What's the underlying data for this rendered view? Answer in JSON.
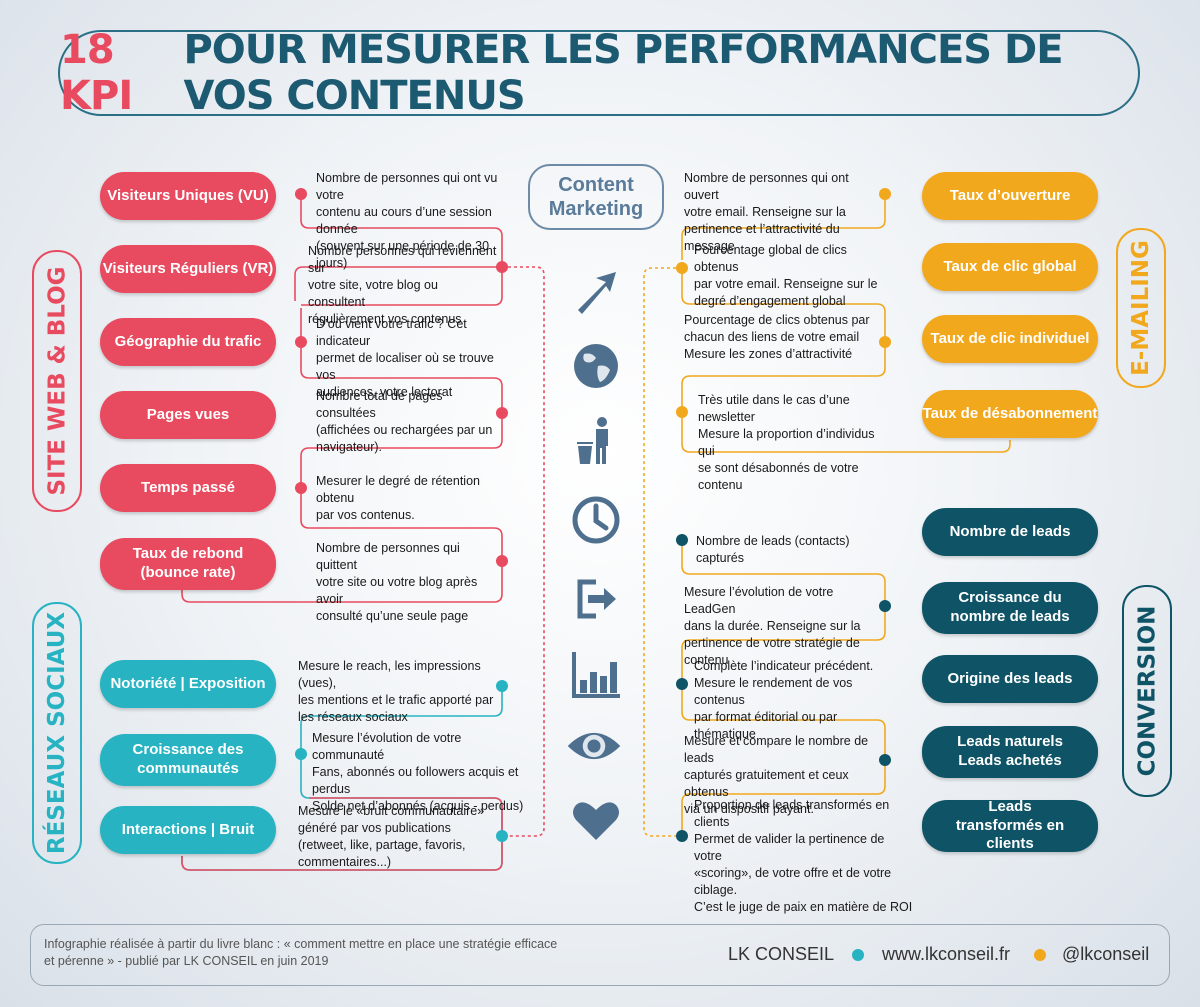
{
  "title": {
    "kpi": "18 KPI",
    "rest": "POUR MESURER LES PERFORMANCES DE VOS CONTENUS"
  },
  "center": {
    "line1": "Content",
    "line2": "Marketing"
  },
  "categories": {
    "web": "SITE WEB & BLOG",
    "social": "RÉSEAUX SOCIAUX",
    "email": "E-MAILING",
    "conversion": "CONVERSION"
  },
  "colors": {
    "pink": "#e84a5f",
    "teal": "#27b3c2",
    "orange": "#f2a81d",
    "navy": "#0f5466",
    "title": "#1c5a72"
  },
  "icons": [
    "arrow-icon",
    "globe-icon",
    "trash-person-icon",
    "clock-icon",
    "exit-icon",
    "bar-chart-icon",
    "eye-icon",
    "heart-icon"
  ],
  "web": [
    {
      "label": "Visiteurs Uniques (VU)",
      "desc": [
        "Nombre de personnes qui ont vu votre",
        "contenu au cours d’une session donnée",
        "(souvent sur une période de 30 jours)"
      ]
    },
    {
      "label": "Visiteurs Réguliers (VR)",
      "desc": [
        "Nombre personnes qui reviennent sur",
        "votre site, votre blog ou consultent",
        "régulièrement vos contenus"
      ]
    },
    {
      "label": "Géographie du trafic",
      "desc": [
        "D’où vient votre trafic ? Cet indicateur",
        "permet de localiser où se trouve vos",
        "audiences, votre lectorat"
      ]
    },
    {
      "label": "Pages vues",
      "desc": [
        "Nombre total de pages consultées",
        "(affichées ou rechargées par un",
        "navigateur)."
      ]
    },
    {
      "label": "Temps passé",
      "desc": [
        "Mesurer le degré de rétention obtenu",
        "par vos contenus."
      ]
    },
    {
      "label": "Taux de rebond (bounce rate)",
      "desc": [
        "Nombre de personnes qui quittent",
        "votre site ou votre blog après avoir",
        "consulté qu’une seule page"
      ]
    }
  ],
  "social": [
    {
      "label": "Notoriété | Exposition",
      "desc": [
        "Mesure le reach, les impressions (vues),",
        "les mentions et le trafic apporté par",
        "les réseaux sociaux"
      ]
    },
    {
      "label": "Croissance des communautés",
      "desc": [
        "Mesure l’évolution de votre communauté",
        "Fans, abonnés ou followers acquis et perdus",
        "Solde net d’abonnés (acquis - perdus)"
      ]
    },
    {
      "label": "Interactions | Bruit",
      "desc": [
        "Mesure le «bruit communautaire»",
        "généré par vos publications",
        "(retweet, like, partage, favoris,",
        "commentaires...)"
      ]
    }
  ],
  "email": [
    {
      "label": "Taux d’ouverture",
      "desc": [
        "Nombre de personnes qui ont ouvert",
        "votre email. Renseigne sur la",
        "pertinence et l’attractivité du message"
      ]
    },
    {
      "label": "Taux de clic global",
      "desc": [
        "Pourcentage global de clics obtenus",
        "par votre email. Renseigne sur le",
        "degré d’engagement global"
      ]
    },
    {
      "label": "Taux de clic individuel",
      "desc": [
        "Pourcentage de clics obtenus par",
        "chacun des liens de votre email",
        "Mesure les zones d’attractivité"
      ]
    },
    {
      "label": "Taux de désabonnement",
      "desc": [
        "Très utile dans le cas d’une newsletter",
        "Mesure la proportion d’individus qui",
        "se sont désabonnés de votre contenu"
      ]
    }
  ],
  "conversion": [
    {
      "label": "Nombre de leads",
      "desc": [
        "Nombre de leads (contacts) capturés"
      ]
    },
    {
      "label": "Croissance du nombre de leads",
      "desc": [
        "Mesure l’évolution de votre LeadGen",
        "dans la durée. Renseigne sur la",
        "pertinence de votre stratégie de contenu"
      ]
    },
    {
      "label": "Origine des leads",
      "desc": [
        "Complète l’indicateur précédent.",
        "Mesure le rendement de vos contenus",
        "par format éditorial ou par thématique"
      ]
    },
    {
      "label": "Leads naturels Leads achetés",
      "desc": [
        "Mesure et compare  le nombre de leads",
        "capturés  gratuitement et ceux obtenus",
        "via  un dispositif payant."
      ]
    },
    {
      "label": "Leads transformés en clients",
      "desc": [
        "Proportion de leads transformés en clients",
        "Permet de valider la pertinence de votre",
        "«scoring», de votre offre et de votre ciblage.",
        "C’est le juge de paix en matière de ROI"
      ]
    }
  ],
  "footer": {
    "note": "Infographie réalisée à partir du livre blanc : « comment mettre en place une stratégie efficace et pérenne » - publié par LK CONSEIL en juin 2019",
    "brand": "LK CONSEIL",
    "site": "www.lkconseil.fr",
    "handle": "@lkconseil"
  }
}
